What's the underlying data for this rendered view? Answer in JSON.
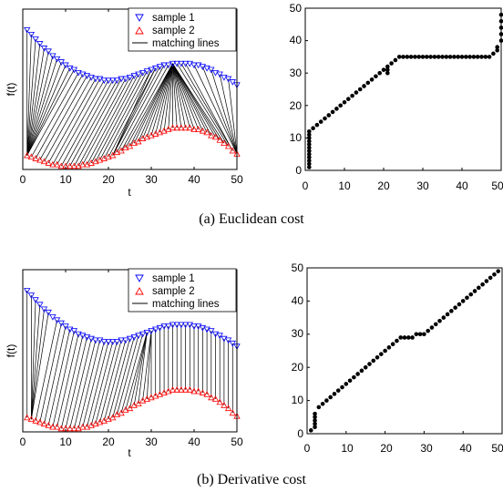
{
  "panels": [
    {
      "caption": "(a) Euclidean cost",
      "left": {
        "xticks": [
          "0",
          "10",
          "20",
          "30",
          "40",
          "50"
        ],
        "xlabel": "t",
        "ylabel": "f(t)",
        "legend": [
          "sample 1",
          "sample 2",
          "matching lines"
        ]
      },
      "right": {
        "xticks": [
          "0",
          "10",
          "20",
          "30",
          "40",
          "50"
        ],
        "yticks": [
          "0",
          "10",
          "20",
          "30",
          "40",
          "50"
        ]
      }
    },
    {
      "caption": "(b) Derivative cost",
      "left": {
        "xticks": [
          "0",
          "10",
          "20",
          "30",
          "40",
          "50"
        ],
        "xlabel": "t",
        "ylabel": "f(t)",
        "legend": [
          "sample 1",
          "sample 2",
          "matching lines"
        ]
      },
      "right": {
        "xticks": [
          "0",
          "10",
          "20",
          "30",
          "40",
          "50"
        ],
        "yticks": [
          "0",
          "10",
          "20",
          "30",
          "40",
          "50"
        ]
      }
    }
  ],
  "colors": {
    "sample1": "#0000ff",
    "sample2": "#ff0000",
    "match": "#000000",
    "path": "#000000"
  },
  "chart_data": [
    {
      "type": "scatter",
      "panel": "(a) Euclidean cost - alignment",
      "xlim": [
        0,
        50
      ],
      "ylim": [
        0,
        1
      ],
      "ytick_labels_shown": false,
      "series": [
        {
          "name": "sample 1",
          "marker": "triangle-down",
          "x": [
            1,
            2,
            3,
            4,
            5,
            6,
            7,
            8,
            9,
            10,
            11,
            12,
            13,
            14,
            15,
            16,
            17,
            18,
            19,
            20,
            21,
            22,
            23,
            24,
            25,
            26,
            27,
            28,
            29,
            30,
            31,
            32,
            33,
            34,
            35,
            36,
            37,
            38,
            39,
            40,
            41,
            42,
            43,
            44,
            45,
            46,
            47,
            48,
            49,
            50
          ],
          "y": [
            0.9,
            0.87,
            0.84,
            0.81,
            0.78,
            0.76,
            0.73,
            0.71,
            0.69,
            0.67,
            0.65,
            0.64,
            0.62,
            0.61,
            0.6,
            0.59,
            0.58,
            0.58,
            0.57,
            0.57,
            0.57,
            0.57,
            0.58,
            0.58,
            0.59,
            0.6,
            0.61,
            0.62,
            0.63,
            0.64,
            0.65,
            0.66,
            0.67,
            0.67,
            0.68,
            0.68,
            0.68,
            0.68,
            0.68,
            0.67,
            0.67,
            0.66,
            0.65,
            0.64,
            0.62,
            0.61,
            0.59,
            0.58,
            0.56,
            0.54
          ]
        },
        {
          "name": "sample 2",
          "marker": "triangle-up",
          "x": [
            1,
            2,
            3,
            4,
            5,
            6,
            7,
            8,
            9,
            10,
            11,
            12,
            13,
            14,
            15,
            16,
            17,
            18,
            19,
            20,
            21,
            22,
            23,
            24,
            25,
            26,
            27,
            28,
            29,
            30,
            31,
            32,
            33,
            34,
            35,
            36,
            37,
            38,
            39,
            40,
            41,
            42,
            43,
            44,
            45,
            46,
            47,
            48,
            49,
            50
          ],
          "y": [
            0.08,
            0.07,
            0.06,
            0.05,
            0.04,
            0.03,
            0.02,
            0.02,
            0.01,
            0.01,
            0.01,
            0.01,
            0.01,
            0.02,
            0.02,
            0.03,
            0.04,
            0.05,
            0.06,
            0.07,
            0.08,
            0.1,
            0.11,
            0.13,
            0.14,
            0.16,
            0.17,
            0.19,
            0.2,
            0.21,
            0.22,
            0.23,
            0.24,
            0.25,
            0.26,
            0.26,
            0.26,
            0.26,
            0.26,
            0.25,
            0.25,
            0.24,
            0.23,
            0.21,
            0.2,
            0.18,
            0.16,
            0.14,
            0.11,
            0.09
          ]
        },
        {
          "name": "matching lines",
          "type": "line"
        }
      ]
    },
    {
      "type": "scatter",
      "panel": "(a) Euclidean cost - warping path",
      "xlim": [
        0,
        50
      ],
      "ylim": [
        0,
        50
      ],
      "x": [
        1,
        1,
        1,
        1,
        1,
        1,
        1,
        1,
        1,
        1,
        1,
        1,
        2,
        3,
        4,
        5,
        6,
        7,
        8,
        9,
        10,
        11,
        12,
        13,
        14,
        15,
        16,
        17,
        18,
        19,
        20,
        21,
        21,
        21,
        22,
        23,
        24,
        25,
        26,
        27,
        28,
        29,
        30,
        31,
        32,
        33,
        34,
        35,
        36,
        37,
        38,
        39,
        40,
        41,
        42,
        43,
        44,
        45,
        46,
        47,
        48,
        49,
        49,
        50,
        50,
        50,
        50,
        50
      ],
      "y": [
        1,
        2,
        3,
        4,
        5,
        6,
        7,
        8,
        9,
        10,
        11,
        12,
        13,
        14,
        15,
        16,
        17,
        18,
        19,
        20,
        21,
        22,
        23,
        24,
        25,
        26,
        27,
        28,
        29,
        30,
        31,
        30,
        31,
        32,
        33,
        34,
        35,
        35,
        35,
        35,
        35,
        35,
        35,
        35,
        35,
        35,
        35,
        35,
        35,
        35,
        35,
        35,
        35,
        35,
        35,
        35,
        35,
        35,
        35,
        35,
        36,
        37,
        38,
        40,
        42,
        44,
        46,
        48
      ]
    },
    {
      "type": "scatter",
      "panel": "(b) Derivative cost - alignment",
      "xlim": [
        0,
        50
      ],
      "ylim": [
        0,
        1
      ],
      "ytick_labels_shown": false,
      "series": [
        {
          "name": "sample 1",
          "marker": "triangle-down",
          "x": [
            1,
            2,
            3,
            4,
            5,
            6,
            7,
            8,
            9,
            10,
            11,
            12,
            13,
            14,
            15,
            16,
            17,
            18,
            19,
            20,
            21,
            22,
            23,
            24,
            25,
            26,
            27,
            28,
            29,
            30,
            31,
            32,
            33,
            34,
            35,
            36,
            37,
            38,
            39,
            40,
            41,
            42,
            43,
            44,
            45,
            46,
            47,
            48,
            49,
            50
          ],
          "y": [
            0.9,
            0.87,
            0.84,
            0.81,
            0.78,
            0.76,
            0.73,
            0.71,
            0.69,
            0.67,
            0.65,
            0.64,
            0.62,
            0.61,
            0.6,
            0.59,
            0.58,
            0.58,
            0.57,
            0.57,
            0.57,
            0.57,
            0.58,
            0.58,
            0.59,
            0.6,
            0.61,
            0.62,
            0.63,
            0.64,
            0.65,
            0.66,
            0.67,
            0.67,
            0.68,
            0.68,
            0.68,
            0.68,
            0.68,
            0.67,
            0.67,
            0.66,
            0.65,
            0.64,
            0.62,
            0.61,
            0.59,
            0.58,
            0.56,
            0.54
          ]
        },
        {
          "name": "sample 2",
          "marker": "triangle-up",
          "x": [
            1,
            2,
            3,
            4,
            5,
            6,
            7,
            8,
            9,
            10,
            11,
            12,
            13,
            14,
            15,
            16,
            17,
            18,
            19,
            20,
            21,
            22,
            23,
            24,
            25,
            26,
            27,
            28,
            29,
            30,
            31,
            32,
            33,
            34,
            35,
            36,
            37,
            38,
            39,
            40,
            41,
            42,
            43,
            44,
            45,
            46,
            47,
            48,
            49,
            50
          ],
          "y": [
            0.08,
            0.07,
            0.06,
            0.05,
            0.04,
            0.03,
            0.02,
            0.02,
            0.01,
            0.01,
            0.01,
            0.01,
            0.01,
            0.02,
            0.02,
            0.03,
            0.04,
            0.05,
            0.06,
            0.07,
            0.08,
            0.1,
            0.11,
            0.13,
            0.14,
            0.16,
            0.17,
            0.19,
            0.2,
            0.21,
            0.22,
            0.23,
            0.24,
            0.25,
            0.26,
            0.26,
            0.26,
            0.26,
            0.26,
            0.25,
            0.25,
            0.24,
            0.23,
            0.21,
            0.2,
            0.18,
            0.16,
            0.14,
            0.11,
            0.09
          ]
        },
        {
          "name": "matching lines",
          "type": "line"
        }
      ]
    },
    {
      "type": "scatter",
      "panel": "(b) Derivative cost - warping path",
      "xlim": [
        0,
        50
      ],
      "ylim": [
        0,
        50
      ],
      "x": [
        1,
        2,
        2,
        2,
        2,
        2,
        3,
        4,
        5,
        6,
        7,
        8,
        9,
        10,
        11,
        12,
        13,
        14,
        15,
        16,
        17,
        18,
        19,
        20,
        21,
        22,
        23,
        24,
        25,
        26,
        27,
        28,
        29,
        30,
        31,
        32,
        33,
        34,
        35,
        36,
        37,
        38,
        39,
        40,
        41,
        42,
        43,
        44,
        45,
        46,
        47,
        48,
        49
      ],
      "y": [
        1,
        2,
        3,
        4,
        5,
        6,
        8,
        9,
        10,
        11,
        12,
        13,
        14,
        15,
        16,
        17,
        18,
        19,
        20,
        21,
        22,
        23,
        24,
        25,
        26,
        27,
        28,
        29,
        29,
        29,
        29,
        30,
        30,
        30,
        31,
        32,
        33,
        34,
        35,
        36,
        37,
        38,
        39,
        40,
        41,
        42,
        43,
        44,
        45,
        46,
        47,
        48,
        49
      ]
    }
  ]
}
